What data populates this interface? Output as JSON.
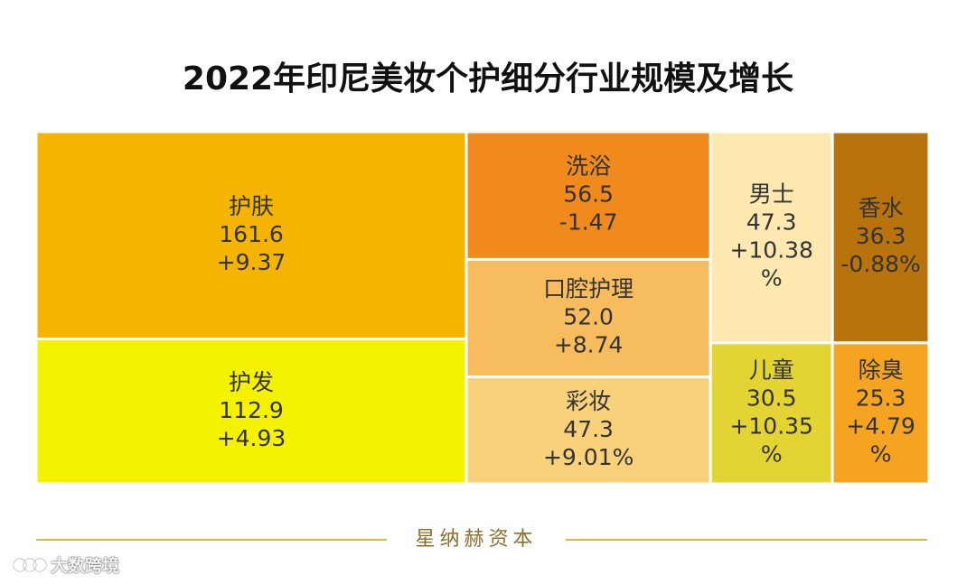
{
  "title": "2022年印尼美妆个护细分行业规模及增长",
  "brand": "星纳赫资本",
  "watermark": "大数跨境",
  "chart_data": {
    "type": "treemap",
    "title": "2022年印尼美妆个护细分行业规模及增长",
    "items": [
      {
        "name": "护肤",
        "value": 161.6,
        "growth": "+9.37",
        "color": "#f4b400"
      },
      {
        "name": "护发",
        "value": 112.9,
        "growth": "+4.93",
        "color": "#f5f200"
      },
      {
        "name": "洗浴",
        "value": 56.5,
        "growth": "-1.47",
        "color": "#f08a1c"
      },
      {
        "name": "口腔护理",
        "value": 52.0,
        "growth": "+8.74",
        "color": "#f7bc5d"
      },
      {
        "name": "彩妆",
        "value": 47.3,
        "growth": "+9.01%",
        "color": "#f9d17a"
      },
      {
        "name": "男士",
        "value": 47.3,
        "growth": "+10.38",
        "growth_tail": "%",
        "color": "#fde8b0"
      },
      {
        "name": "香水",
        "value": 36.3,
        "growth": "-0.88%",
        "color": "#b8730c"
      },
      {
        "name": "儿童",
        "value": 30.5,
        "growth": "+10.35",
        "growth_tail": "%",
        "color": "#e3d433"
      },
      {
        "name": "除臭",
        "value": 25.3,
        "growth": "+4.79",
        "growth_tail": "%",
        "color": "#f4a421"
      }
    ]
  }
}
